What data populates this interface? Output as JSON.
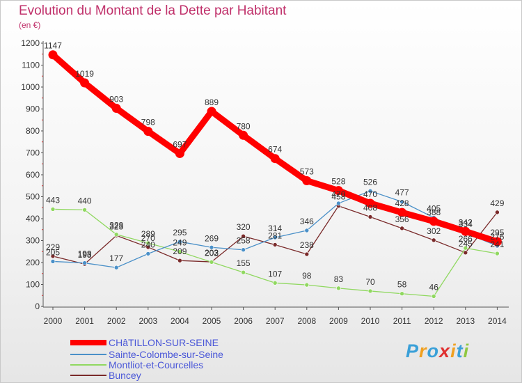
{
  "chart_data": {
    "type": "line",
    "title": "Evolution du Montant de la Dette par Habitant",
    "ylabel": "(en €)",
    "xlabel": "",
    "ylim": [
      0,
      1200
    ],
    "yticks": [
      0,
      100,
      200,
      300,
      400,
      500,
      600,
      700,
      800,
      900,
      1000,
      1100,
      1200
    ],
    "categories": [
      "2000",
      "2001",
      "2002",
      "2003",
      "2004",
      "2005",
      "2006",
      "2007",
      "2008",
      "2009",
      "2010",
      "2011",
      "2012",
      "2013",
      "2014"
    ],
    "grid": false,
    "legend_position": "bottom-left",
    "series": [
      {
        "name": "CHâTILLON-SUR-SEINE",
        "color": "#ff0000",
        "values": [
          1147,
          1019,
          903,
          798,
          697,
          889,
          780,
          674,
          573,
          528,
          470,
          428,
          388,
          342,
          295
        ]
      },
      {
        "name": "Sainte-Colombe-sur-Seine",
        "color": "#4a90c8",
        "values": [
          205,
          198,
          177,
          240,
          295,
          269,
          258,
          314,
          346,
          470,
          526,
          477,
          405,
          334,
          276
        ]
      },
      {
        "name": "Montliot-et-Courcelles",
        "color": "#90d860",
        "values": [
          443,
          440,
          328,
          289,
          249,
          202,
          155,
          107,
          98,
          83,
          70,
          58,
          46,
          266,
          241
        ]
      },
      {
        "name": "Buncey",
        "color": "#7a2a2a",
        "values": [
          229,
          193,
          323,
          270,
          209,
          203,
          320,
          281,
          238,
          458,
          408,
          356,
          302,
          245,
          429
        ]
      }
    ]
  },
  "logo": {
    "text": "Proxiti"
  }
}
